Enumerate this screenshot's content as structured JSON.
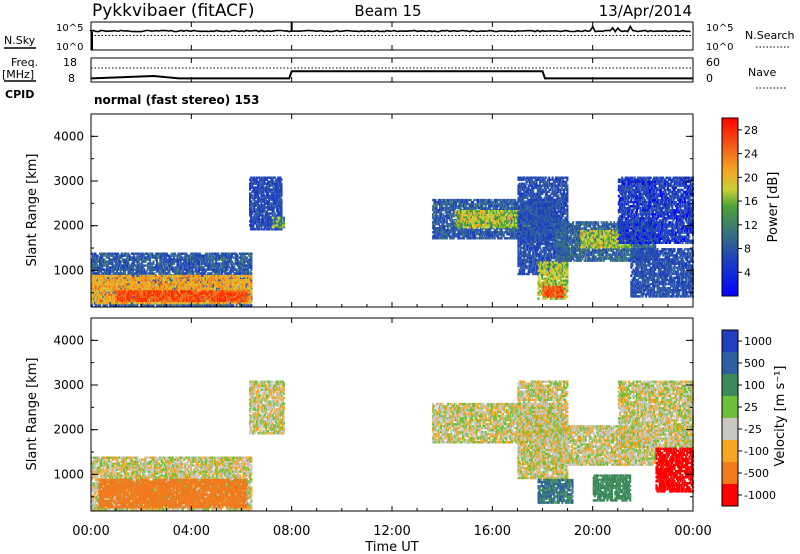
{
  "header": {
    "radar": "Pykkvibaer (fitACF)",
    "beam": "Beam 15",
    "date": "13/Apr/2014"
  },
  "noise_panel": {
    "left_label": "N.Sky",
    "left_ticks": [
      "10^5",
      "10^0"
    ],
    "right_ticks": [
      "10^5",
      "10^0"
    ],
    "right_label": "N.Search"
  },
  "freq_panel": {
    "left_label_1": "Freq.",
    "left_label_2": "[MHz]",
    "left_ticks": [
      "18",
      "8"
    ],
    "right_ticks": [
      "60",
      "0"
    ],
    "right_label": "Nave",
    "cpid_label": "CPID",
    "cpid_text": "normal (fast stereo) 153"
  },
  "x_axis": {
    "label": "Time UT",
    "ticks": [
      "00:00",
      "04:00",
      "08:00",
      "12:00",
      "16:00",
      "20:00",
      "00:00"
    ]
  },
  "power_panel": {
    "ylabel": "Slant Range [km]",
    "yticks": [
      "1000",
      "2000",
      "3000",
      "4000"
    ],
    "colorbar_label": "Power [dB]",
    "colorbar_ticks": [
      "4",
      "8",
      "12",
      "16",
      "20",
      "24",
      "28"
    ]
  },
  "velocity_panel": {
    "ylabel": "Slant Range [km]",
    "yticks": [
      "1000",
      "2000",
      "3000",
      "4000"
    ],
    "colorbar_label": "Velocity [m s^-1]",
    "colorbar_ticks": [
      "1000",
      "500",
      "100",
      "25",
      "-25",
      "-100",
      "-500",
      "-1000"
    ]
  },
  "chart_data": [
    {
      "type": "line",
      "title": "N.Sky / N.Search",
      "x": [
        0,
        8,
        18,
        21,
        24
      ],
      "series": [
        {
          "name": "N.Sky",
          "values": [
            100000.0,
            100000.0,
            100000.0,
            100000.0,
            100000.0
          ]
        }
      ]
    },
    {
      "type": "line",
      "title": "Freq. [MHz] / Nave",
      "xlabel": "Time UT",
      "x": [
        0,
        2.5,
        3.5,
        7.9,
        8.0,
        18.0,
        18.1,
        24
      ],
      "series": [
        {
          "name": "Freq.",
          "values": [
            9.5,
            10.5,
            9.5,
            9.5,
            12.5,
            12.5,
            9.5,
            9.5
          ]
        }
      ],
      "ylim": [
        8,
        18
      ]
    },
    {
      "type": "heatmap",
      "title": "Power [dB]",
      "xlabel": "Time UT",
      "ylabel": "Slant Range [km]",
      "xlim": [
        0,
        24
      ],
      "ylim": [
        180,
        4500
      ],
      "colorbar": {
        "label": "Power [dB]",
        "range": [
          0,
          30
        ],
        "ticks": [
          4,
          8,
          12,
          16,
          20,
          24,
          28
        ]
      },
      "regions": [
        {
          "t0": 0.0,
          "t1": 6.4,
          "r0": 200,
          "r1": 1400,
          "level": 10
        },
        {
          "t0": 0.0,
          "t1": 6.4,
          "r0": 250,
          "r1": 900,
          "level": 22
        },
        {
          "t0": 1.0,
          "t1": 6.2,
          "r0": 300,
          "r1": 550,
          "level": 27
        },
        {
          "t0": 6.3,
          "t1": 7.6,
          "r0": 1900,
          "r1": 3100,
          "level": 8
        },
        {
          "t0": 7.2,
          "t1": 7.7,
          "r0": 1950,
          "r1": 2200,
          "level": 15
        },
        {
          "t0": 13.6,
          "t1": 18.6,
          "r0": 1700,
          "r1": 2600,
          "level": 10
        },
        {
          "t0": 14.5,
          "t1": 17.5,
          "r0": 1950,
          "r1": 2350,
          "level": 18
        },
        {
          "t0": 17.0,
          "t1": 19.0,
          "r0": 900,
          "r1": 3100,
          "level": 9
        },
        {
          "t0": 17.8,
          "t1": 19.0,
          "r0": 350,
          "r1": 1200,
          "level": 18
        },
        {
          "t0": 18.0,
          "t1": 18.8,
          "r0": 400,
          "r1": 650,
          "level": 27
        },
        {
          "t0": 18.5,
          "t1": 22.5,
          "r0": 1200,
          "r1": 2100,
          "level": 11
        },
        {
          "t0": 19.5,
          "t1": 21.5,
          "r0": 1500,
          "r1": 1900,
          "level": 18
        },
        {
          "t0": 21.0,
          "t1": 24.0,
          "r0": 1600,
          "r1": 3100,
          "level": 7
        },
        {
          "t0": 21.5,
          "t1": 24.0,
          "r0": 400,
          "r1": 1500,
          "level": 9
        }
      ]
    },
    {
      "type": "heatmap",
      "title": "Velocity [m s^-1]",
      "xlabel": "Time UT",
      "ylabel": "Slant Range [km]",
      "xlim": [
        0,
        24
      ],
      "ylim": [
        180,
        4500
      ],
      "colorbar": {
        "label": "Velocity [m s^-1]",
        "ticks": [
          1000,
          500,
          100,
          25,
          -25,
          -100,
          -500,
          -1000
        ]
      },
      "regions": [
        {
          "t0": 0.0,
          "t1": 6.4,
          "r0": 200,
          "r1": 1400,
          "vel": 0
        },
        {
          "t0": 0.3,
          "t1": 6.2,
          "r0": 250,
          "r1": 900,
          "vel": -300
        },
        {
          "t0": 6.3,
          "t1": 7.7,
          "r0": 1900,
          "r1": 3100,
          "vel": 0
        },
        {
          "t0": 13.6,
          "t1": 18.8,
          "r0": 1700,
          "r1": 2600,
          "vel": 0
        },
        {
          "t0": 17.0,
          "t1": 19.0,
          "r0": 900,
          "r1": 3100,
          "vel": 0
        },
        {
          "t0": 17.8,
          "t1": 19.2,
          "r0": 350,
          "r1": 900,
          "vel": 300
        },
        {
          "t0": 18.5,
          "t1": 22.5,
          "r0": 1200,
          "r1": 2100,
          "vel": 0
        },
        {
          "t0": 20.0,
          "t1": 21.5,
          "r0": 400,
          "r1": 1000,
          "vel": 200
        },
        {
          "t0": 21.0,
          "t1": 24.0,
          "r0": 1600,
          "r1": 3100,
          "vel": 0
        },
        {
          "t0": 22.5,
          "t1": 24.0,
          "r0": 600,
          "r1": 1600,
          "vel": -800
        }
      ]
    }
  ]
}
